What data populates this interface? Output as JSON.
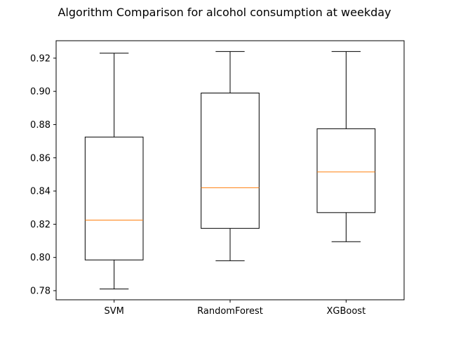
{
  "chart_data": {
    "type": "box",
    "title": "Algorithm Comparison for alcohol consumption at weekday",
    "xlabel": "",
    "ylabel": "",
    "categories": [
      "SVM",
      "RandomForest",
      "XGBoost"
    ],
    "boxes": [
      {
        "category": "SVM",
        "whisker_low": 0.781,
        "q1": 0.7985,
        "median": 0.8225,
        "q3": 0.8725,
        "whisker_high": 0.923
      },
      {
        "category": "RandomForest",
        "whisker_low": 0.798,
        "q1": 0.8175,
        "median": 0.842,
        "q3": 0.899,
        "whisker_high": 0.924
      },
      {
        "category": "XGBoost",
        "whisker_low": 0.8095,
        "q1": 0.827,
        "median": 0.8515,
        "q3": 0.8775,
        "whisker_high": 0.924
      }
    ],
    "ylim": [
      0.7745,
      0.9305
    ],
    "yticks": [
      0.78,
      0.8,
      0.82,
      0.84,
      0.86,
      0.88,
      0.9,
      0.92
    ],
    "ytick_labels": [
      "0.78",
      "0.80",
      "0.82",
      "0.84",
      "0.86",
      "0.88",
      "0.90",
      "0.92"
    ],
    "grid": false,
    "legend": "none",
    "colors": {
      "box": "#000000",
      "median": "#ff7f0e",
      "axes": "#000000",
      "background": "#ffffff"
    }
  }
}
